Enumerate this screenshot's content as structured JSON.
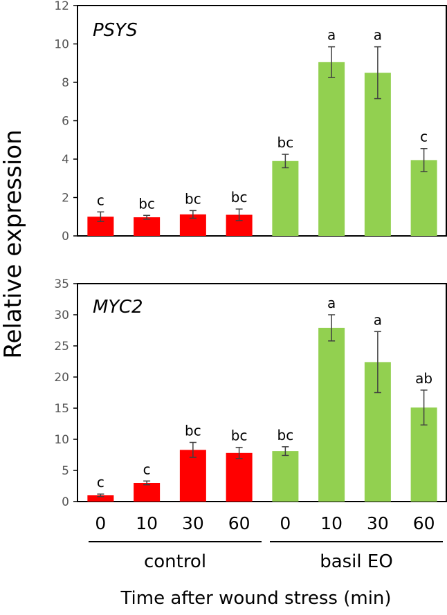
{
  "colors": {
    "control": "#ff0000",
    "basil": "#92d050",
    "error_bar": "#404040",
    "axis": "#000000"
  },
  "chart_data": [
    {
      "type": "bar",
      "title": "PSYS",
      "ylabel": "Relative expression",
      "ylim": [
        0,
        12
      ],
      "yticks": [
        "0",
        "2",
        "4",
        "6",
        "8",
        "10",
        "12"
      ],
      "categories": [
        "0",
        "10",
        "30",
        "60",
        "0",
        "10",
        "30",
        "60"
      ],
      "groups": [
        {
          "name": "control",
          "indices": [
            0,
            1,
            2,
            3
          ]
        },
        {
          "name": "basil EO",
          "indices": [
            4,
            5,
            6,
            7
          ]
        }
      ],
      "values": [
        1.0,
        0.97,
        1.12,
        1.1,
        3.9,
        9.05,
        8.5,
        3.95
      ],
      "errors": [
        0.25,
        0.1,
        0.2,
        0.3,
        0.35,
        0.8,
        1.35,
        0.6
      ],
      "significance": [
        "c",
        "bc",
        "bc",
        "bc",
        "bc",
        "a",
        "a",
        "c"
      ]
    },
    {
      "type": "bar",
      "title": "MYC2",
      "ylabel": "Relative expression",
      "ylim": [
        0,
        35
      ],
      "yticks": [
        "0",
        "5",
        "10",
        "15",
        "20",
        "25",
        "30",
        "35"
      ],
      "categories": [
        "0",
        "10",
        "30",
        "60",
        "0",
        "10",
        "30",
        "60"
      ],
      "groups": [
        {
          "name": "control",
          "indices": [
            0,
            1,
            2,
            3
          ]
        },
        {
          "name": "basil EO",
          "indices": [
            4,
            5,
            6,
            7
          ]
        }
      ],
      "values": [
        1.0,
        3.0,
        8.3,
        7.8,
        8.1,
        27.9,
        22.4,
        15.1
      ],
      "errors": [
        0.2,
        0.3,
        1.2,
        0.9,
        0.7,
        2.1,
        4.9,
        2.8
      ],
      "significance": [
        "c",
        "c",
        "bc",
        "bc",
        "bc",
        "a",
        "a",
        "ab"
      ]
    }
  ],
  "x_axis": {
    "categories": [
      "0",
      "10",
      "30",
      "60",
      "0",
      "10",
      "30",
      "60"
    ],
    "group_labels": [
      "control",
      "basil EO"
    ],
    "title": "Time after wound stress (min)"
  },
  "y_axis_title": "Relative expression"
}
